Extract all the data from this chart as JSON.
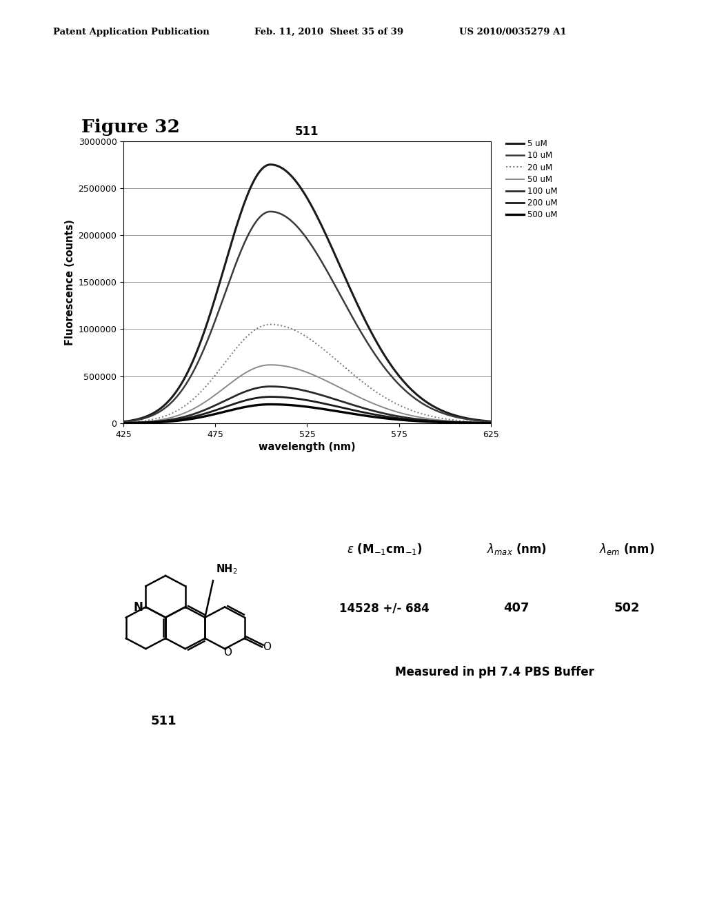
{
  "header_left": "Patent Application Publication",
  "header_mid": "Feb. 11, 2010  Sheet 35 of 39",
  "header_right": "US 2010/0035279 A1",
  "figure_label": "Figure 32",
  "chart_title": "511",
  "xlabel": "wavelength (nm)",
  "ylabel": "Fluorescence (counts)",
  "xlim": [
    425,
    625
  ],
  "ylim": [
    0,
    3000000
  ],
  "yticks": [
    0,
    500000,
    1000000,
    1500000,
    2000000,
    2500000,
    3000000
  ],
  "xticks": [
    425,
    475,
    525,
    575,
    625
  ],
  "peak_wavelength": 505,
  "concentrations": [
    "5 uM",
    "10 uM",
    "20 uM",
    "50 uM",
    "100 uM",
    "200 uM",
    "500 uM"
  ],
  "peak_values": [
    2750000,
    2250000,
    1050000,
    620000,
    390000,
    280000,
    200000
  ],
  "table_epsilon": "14528 +/- 684",
  "table_lambda_max": "407",
  "table_lambda_em": "502",
  "table_note": "Measured in pH 7.4 PBS Buffer",
  "compound_label": "511",
  "background_color": "#ffffff"
}
